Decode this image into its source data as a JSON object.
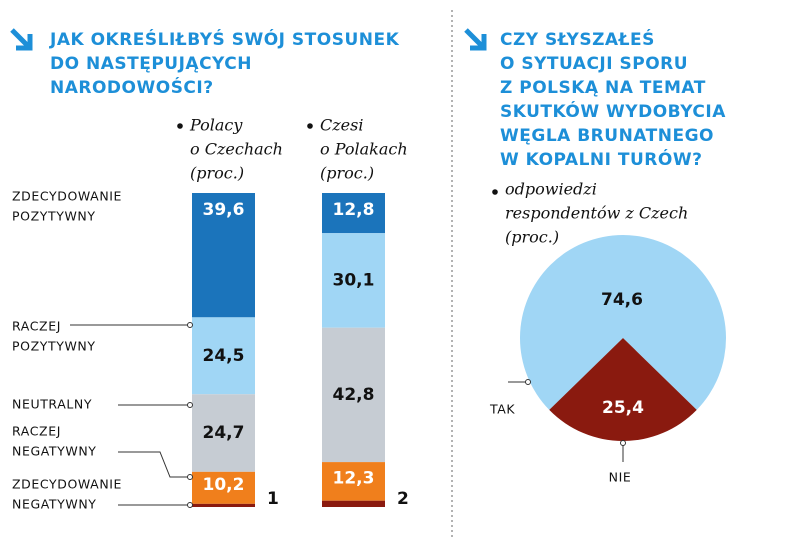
{
  "chart_data": [
    {
      "type": "stacked_bar",
      "title": [
        "JAK OKREŚLIŁBYŚ SWÓJ STOSUNEK",
        "DO NASTĘPUJĄCYCH",
        "NARODOWOŚCI?"
      ],
      "categories": [
        [
          "ZDECYDOWANIE",
          "POZYTYWNY"
        ],
        [
          "RACZEJ",
          "POZYTYWNY"
        ],
        [
          "NEUTRALNY"
        ],
        [
          "RACZEJ",
          "NEGATYWNY"
        ],
        [
          "ZDECYDOWANIE",
          "NEGATYWNY"
        ]
      ],
      "colors": [
        "#1b74bb",
        "#a0d6f5",
        "#c6ccd3",
        "#f07f1c",
        "#8a1a0f"
      ],
      "series": [
        {
          "name": [
            "Polacy",
            "o Czechach",
            "(proc.)"
          ],
          "values": [
            39.6,
            24.5,
            24.7,
            10.2,
            1
          ],
          "value_labels": [
            "39,6",
            "24,5",
            "24,7",
            "10,2",
            "1"
          ]
        },
        {
          "name": [
            "Czesi",
            "o Polakach",
            "(proc.)"
          ],
          "values": [
            12.8,
            30.1,
            42.8,
            12.3,
            2
          ],
          "value_labels": [
            "12,8",
            "30,1",
            "42,8",
            "12,3",
            "2"
          ]
        }
      ]
    },
    {
      "type": "pie",
      "title": [
        "CZY SŁYSZAŁEŚ",
        "O SYTUACJI SPORU",
        "Z POLSKĄ NA TEMAT",
        "SKUTKÓW WYDOBYCIA",
        "WĘGLA BRUNATNEGO",
        "W KOPALNI TURÓW?"
      ],
      "subtitle": [
        "odpowiedzi",
        "respondentów z Czech",
        "(proc.)"
      ],
      "categories": [
        "TAK",
        "NIE"
      ],
      "values": [
        74.6,
        25.4
      ],
      "value_labels": [
        "74,6",
        "25,4"
      ],
      "colors": [
        "#a0d6f5",
        "#8a1a0f"
      ]
    }
  ]
}
